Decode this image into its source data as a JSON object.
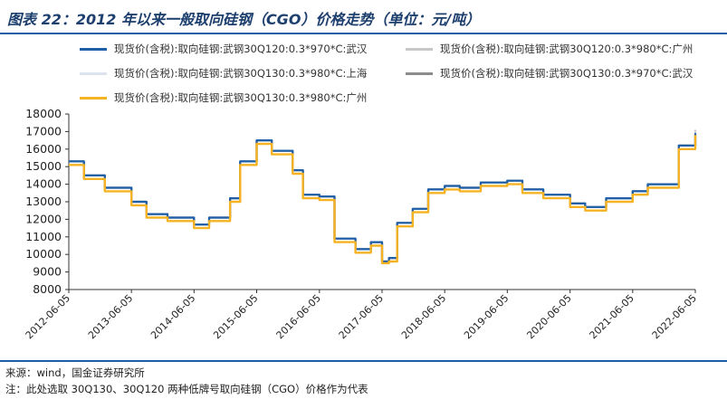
{
  "title": "图表 22：2012 年以来一般取向硅钢（CGO）价格走势（单位：元/吨）",
  "source": "来源：wind，国金证券研究所",
  "note": "注：此处选取 30Q130、30Q120 两种低牌号取向硅钢（CGO）价格作为代表",
  "chart_data": {
    "type": "line",
    "ylim": [
      8000,
      18000
    ],
    "yticks": [
      "18000",
      "17000",
      "16000",
      "15000",
      "14000",
      "13000",
      "12000",
      "11000",
      "10000",
      "9000",
      "8000"
    ],
    "xticks": [
      "2012-06-05",
      "2013-06-05",
      "2014-06-05",
      "2015-06-05",
      "2016-06-05",
      "2017-06-05",
      "2018-06-05",
      "2019-06-05",
      "2020-06-05",
      "2021-06-05",
      "2022-06-05"
    ],
    "x_range": [
      "2012-06-05",
      "2022-06-05"
    ],
    "grid": false,
    "legend_position": "top",
    "series": [
      {
        "name": "现货价(含税):取向硅钢:武钢30Q120:0.3*970*C:武汉",
        "color": "#1f5fa8",
        "offset": 100,
        "x": [
          "2012-06-05",
          "2012-09-01",
          "2013-01-01",
          "2013-06-05",
          "2013-09-01",
          "2014-01-01",
          "2014-06-05",
          "2014-09-01",
          "2015-01-01",
          "2015-03-01",
          "2015-06-05",
          "2015-09-01",
          "2016-01-01",
          "2016-03-01",
          "2016-06-05",
          "2016-09-01",
          "2017-01-01",
          "2017-04-01",
          "2017-06-05",
          "2017-07-15",
          "2017-09-01",
          "2017-12-01",
          "2018-03-01",
          "2018-06-05",
          "2018-09-01",
          "2019-01-01",
          "2019-06-05",
          "2019-09-01",
          "2020-01-01",
          "2020-06-05",
          "2020-09-01",
          "2021-01-01",
          "2021-06-05",
          "2021-09-01",
          "2021-12-01",
          "2022-03-01",
          "2022-06-05"
        ],
        "values": [
          15300,
          14500,
          13800,
          13000,
          12300,
          12100,
          11700,
          12100,
          13200,
          15300,
          16500,
          15900,
          14800,
          13400,
          13300,
          10900,
          10300,
          10700,
          9600,
          9800,
          11800,
          12600,
          13700,
          13900,
          13800,
          14100,
          14200,
          13700,
          13400,
          12900,
          12700,
          13200,
          13600,
          14000,
          14000,
          16200,
          16900
        ]
      },
      {
        "name": "现货价(含税):取向硅钢:武钢30Q120:0.3*980*C:广州",
        "color": "#c8c8c8",
        "offset": 350,
        "x": [
          "2012-06-05",
          "2012-09-01",
          "2013-01-01",
          "2013-06-05",
          "2013-09-01",
          "2014-01-01",
          "2014-06-05",
          "2014-09-01",
          "2015-01-01",
          "2015-03-01",
          "2015-06-05",
          "2015-09-01",
          "2016-01-01",
          "2016-03-01",
          "2016-06-05",
          "2016-09-01",
          "2017-01-01",
          "2017-04-01",
          "2017-06-05",
          "2017-07-15",
          "2017-09-01",
          "2017-12-01",
          "2018-03-01",
          "2018-06-05",
          "2018-09-01",
          "2019-01-01",
          "2019-06-05",
          "2019-09-01",
          "2020-01-01",
          "2020-06-05",
          "2020-09-01",
          "2021-01-01",
          "2021-06-05",
          "2021-09-01",
          "2021-12-01",
          "2022-03-01",
          "2022-06-05"
        ],
        "values": [
          15300,
          14500,
          13800,
          13000,
          12300,
          12100,
          11700,
          12100,
          13200,
          15300,
          16500,
          15900,
          14800,
          13400,
          13300,
          10900,
          10300,
          10700,
          9600,
          9800,
          11800,
          12600,
          13700,
          13900,
          13800,
          14100,
          14200,
          13700,
          13400,
          12900,
          12700,
          13200,
          13600,
          14000,
          14000,
          16200,
          17100
        ]
      },
      {
        "name": "现货价(含税):取向硅钢:武钢30Q130:0.3*980*C:上海",
        "color": "#dde3ec",
        "offset": 200,
        "x": [
          "2012-06-05",
          "2012-09-01",
          "2013-01-01",
          "2013-06-05",
          "2013-09-01",
          "2014-01-01",
          "2014-06-05",
          "2014-09-01",
          "2015-01-01",
          "2015-03-01",
          "2015-06-05",
          "2015-09-01",
          "2016-01-01",
          "2016-03-01",
          "2016-06-05",
          "2016-09-01",
          "2017-01-01",
          "2017-04-01",
          "2017-06-05",
          "2017-07-15",
          "2017-09-01",
          "2017-12-01",
          "2018-03-01",
          "2018-06-05",
          "2018-09-01",
          "2019-01-01",
          "2019-06-05",
          "2019-09-01",
          "2020-01-01",
          "2020-06-05",
          "2020-09-01",
          "2021-01-01",
          "2021-06-05",
          "2021-09-01",
          "2021-12-01",
          "2022-03-01",
          "2022-06-05"
        ],
        "values": [
          15300,
          14500,
          13800,
          13000,
          12300,
          12100,
          11700,
          12100,
          13200,
          15300,
          16500,
          15900,
          14800,
          13400,
          13300,
          10900,
          10300,
          10700,
          9600,
          9800,
          11800,
          12600,
          13700,
          13900,
          13800,
          14100,
          14200,
          13700,
          13400,
          12900,
          12700,
          13200,
          13600,
          14000,
          14000,
          16200,
          16900
        ]
      },
      {
        "name": "现货价(含税):取向硅钢:武钢30Q130:0.3*970*C:武汉",
        "color": "#8c8c8c",
        "offset": -50,
        "x": [
          "2012-06-05",
          "2012-09-01",
          "2013-01-01",
          "2013-06-05",
          "2013-09-01",
          "2014-01-01",
          "2014-06-05",
          "2014-09-01",
          "2015-01-01",
          "2015-03-01",
          "2015-06-05",
          "2015-09-01",
          "2016-01-01",
          "2016-03-01",
          "2016-06-05",
          "2016-09-01",
          "2017-01-01",
          "2017-04-01",
          "2017-06-05",
          "2017-07-15",
          "2017-09-01",
          "2017-12-01",
          "2018-03-01",
          "2018-06-05",
          "2018-09-01",
          "2019-01-01",
          "2019-06-05",
          "2019-09-01",
          "2020-01-01",
          "2020-06-05",
          "2020-09-01",
          "2021-01-01",
          "2021-06-05",
          "2021-09-01",
          "2021-12-01",
          "2022-03-01",
          "2022-06-05"
        ],
        "values": [
          15300,
          14500,
          13800,
          13000,
          12300,
          12100,
          11700,
          12100,
          13200,
          15300,
          16500,
          15900,
          14800,
          13400,
          13300,
          10900,
          10300,
          10700,
          9600,
          9800,
          11800,
          12600,
          13700,
          13900,
          13800,
          14100,
          14200,
          13700,
          13400,
          12900,
          12700,
          13200,
          13600,
          14000,
          14000,
          16200,
          16800
        ]
      },
      {
        "name": "现货价(含税):取向硅钢:武钢30Q130:0.3*980*C:广州",
        "color": "#f5b323",
        "offset": 0,
        "x": [
          "2012-06-05",
          "2012-09-01",
          "2013-01-01",
          "2013-06-05",
          "2013-09-01",
          "2014-01-01",
          "2014-06-05",
          "2014-09-01",
          "2015-01-01",
          "2015-03-01",
          "2015-06-05",
          "2015-09-01",
          "2016-01-01",
          "2016-03-01",
          "2016-06-05",
          "2016-09-01",
          "2017-01-01",
          "2017-04-01",
          "2017-06-05",
          "2017-07-15",
          "2017-09-01",
          "2017-12-01",
          "2018-03-01",
          "2018-06-05",
          "2018-09-01",
          "2019-01-01",
          "2019-06-05",
          "2019-09-01",
          "2020-01-01",
          "2020-06-05",
          "2020-09-01",
          "2021-01-01",
          "2021-06-05",
          "2021-09-01",
          "2021-12-01",
          "2022-03-01",
          "2022-06-05"
        ],
        "values": [
          15100,
          14300,
          13600,
          12800,
          12100,
          11900,
          11500,
          11900,
          13000,
          15100,
          16300,
          15700,
          14600,
          13200,
          13100,
          10700,
          10100,
          10500,
          9500,
          9600,
          11600,
          12400,
          13500,
          13700,
          13600,
          13900,
          14000,
          13500,
          13200,
          12700,
          12500,
          13000,
          13400,
          13800,
          13800,
          16000,
          16800
        ]
      }
    ]
  }
}
